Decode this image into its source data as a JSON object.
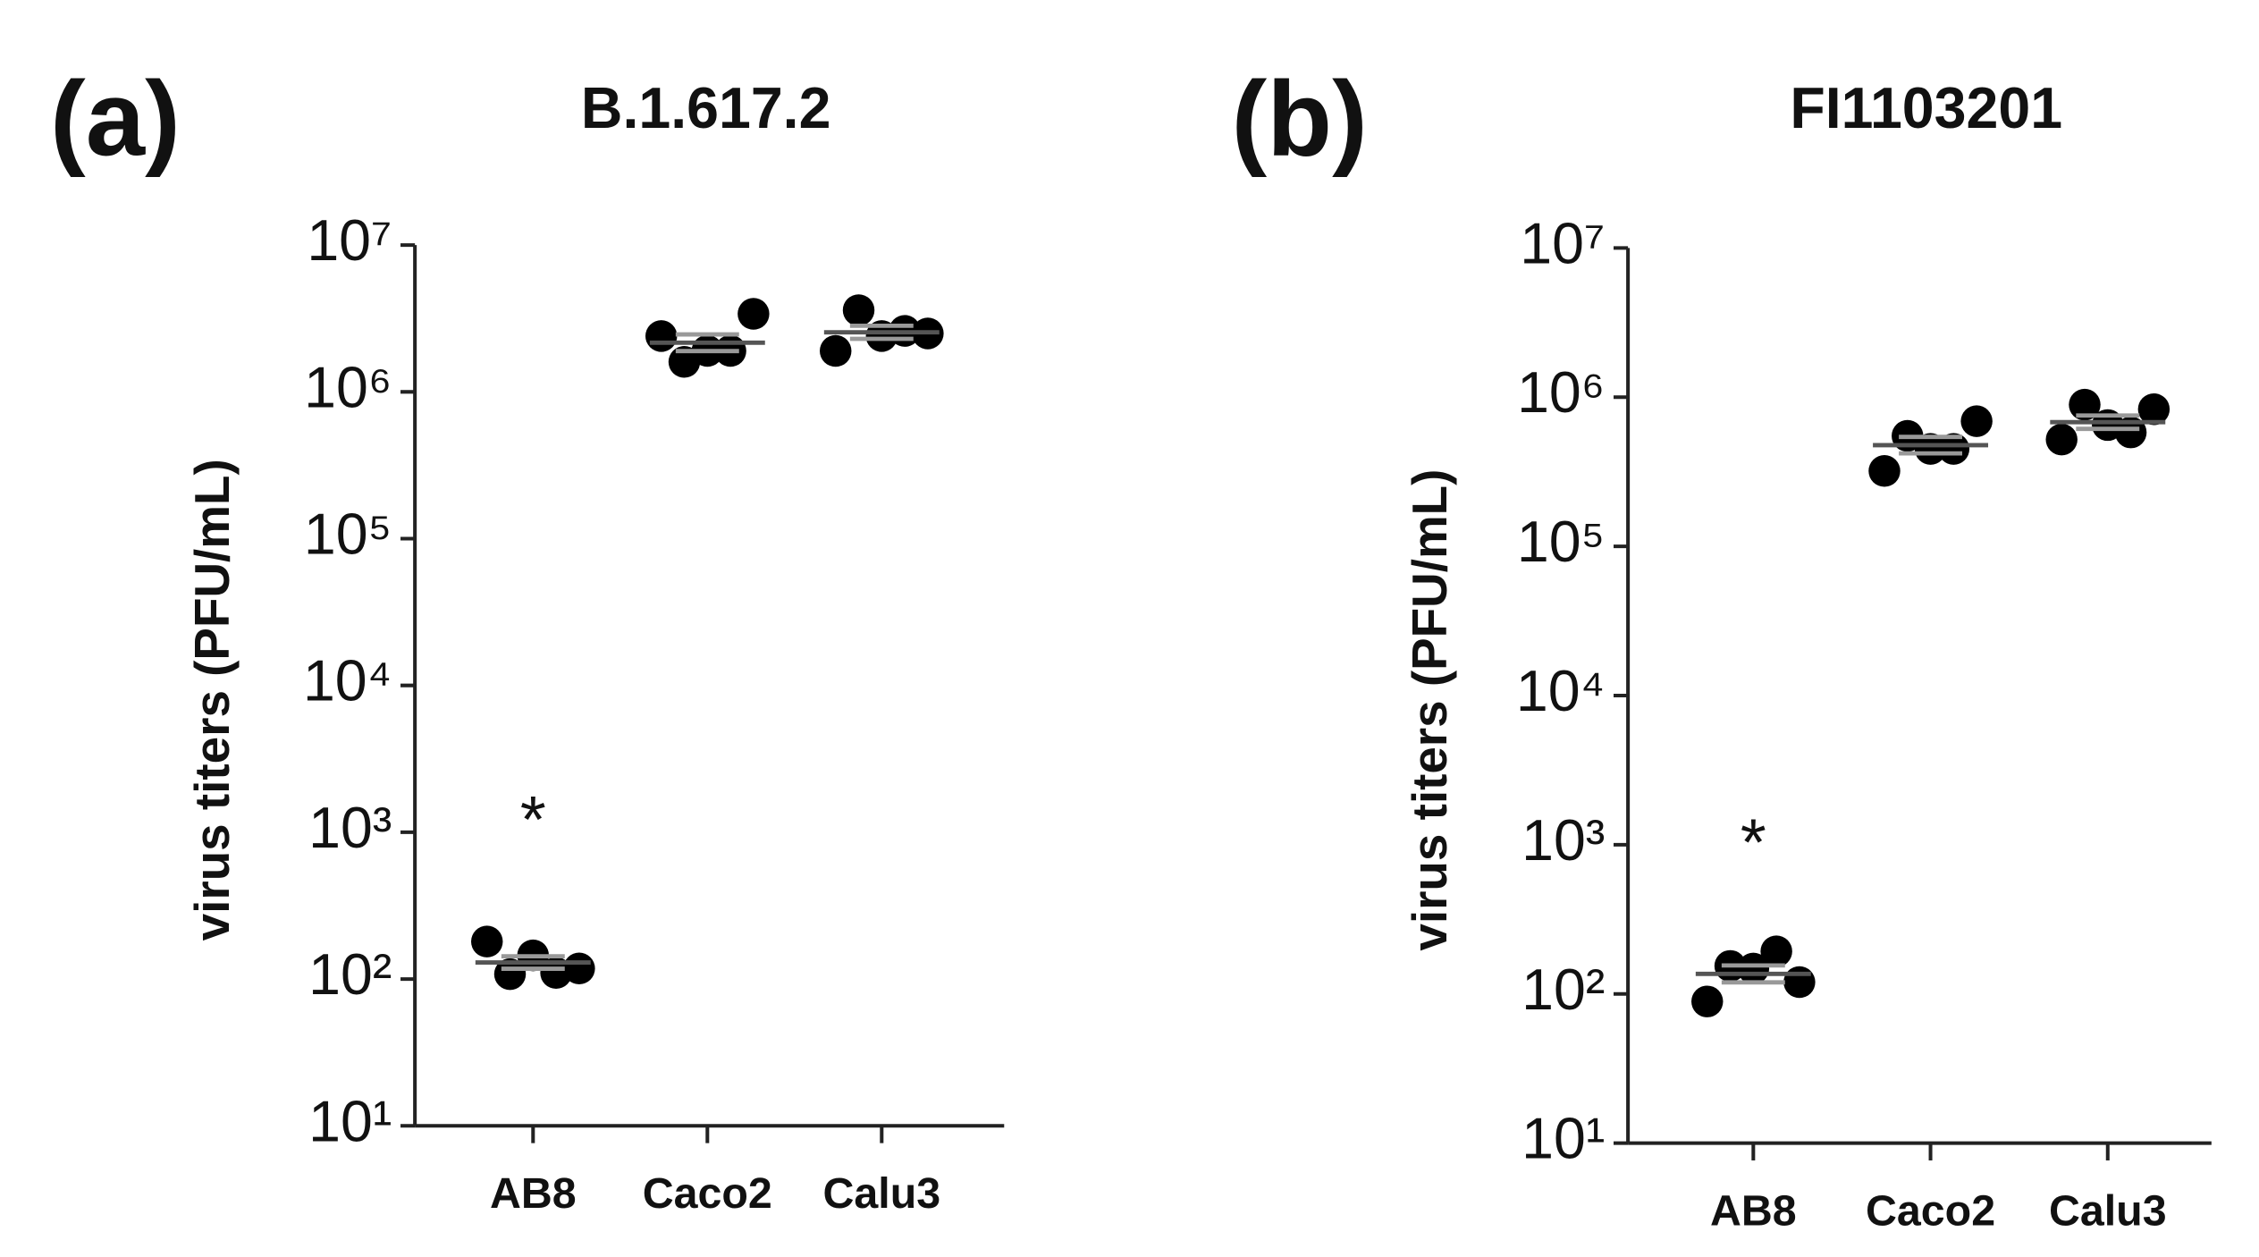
{
  "chart_data": [
    {
      "type": "scatter",
      "panel_label": "(a)",
      "title": "B.1.617.2",
      "ylabel": "virus titers (PFU/mL)",
      "categories": [
        "AB8",
        "Caco2",
        "Calu3"
      ],
      "values": [
        [
          180,
          108,
          145,
          110,
          118
        ],
        [
          2400000,
          1600000,
          1900000,
          1900000,
          3400000
        ],
        [
          1900000,
          3600000,
          2400000,
          2600000,
          2500000
        ]
      ],
      "color": "#000000",
      "yscale": "log",
      "ylim": [
        10,
        10000000
      ],
      "yticks": [
        {
          "value": 10,
          "label": "10¹"
        },
        {
          "value": 100,
          "label": "10²"
        },
        {
          "value": 1000,
          "label": "10³"
        },
        {
          "value": 10000,
          "label": "10⁴"
        },
        {
          "value": 100000,
          "label": "10⁵"
        },
        {
          "value": 1000000,
          "label": "10⁶"
        },
        {
          "value": 10000000,
          "label": "10⁷"
        }
      ],
      "annotation": "*"
    },
    {
      "type": "scatter",
      "panel_label": "(b)",
      "title": "FI1103201",
      "ylabel": "virus titers (PFU/mL)",
      "categories": [
        "AB8",
        "Caco2",
        "Calu3"
      ],
      "values": [
        [
          89,
          154,
          148,
          193,
          120
        ],
        [
          320000,
          550000,
          450000,
          450000,
          690000
        ],
        [
          520000,
          890000,
          650000,
          580000,
          830000
        ]
      ],
      "color": "#000000",
      "yscale": "log",
      "ylim": [
        10,
        10000000
      ],
      "yticks": [
        {
          "value": 10,
          "label": "10¹"
        },
        {
          "value": 100,
          "label": "10²"
        },
        {
          "value": 1000,
          "label": "10³"
        },
        {
          "value": 10000,
          "label": "10⁴"
        },
        {
          "value": 100000,
          "label": "10⁵"
        },
        {
          "value": 1000000,
          "label": "10⁶"
        },
        {
          "value": 10000000,
          "label": "10⁷"
        }
      ],
      "annotation": "*"
    }
  ]
}
